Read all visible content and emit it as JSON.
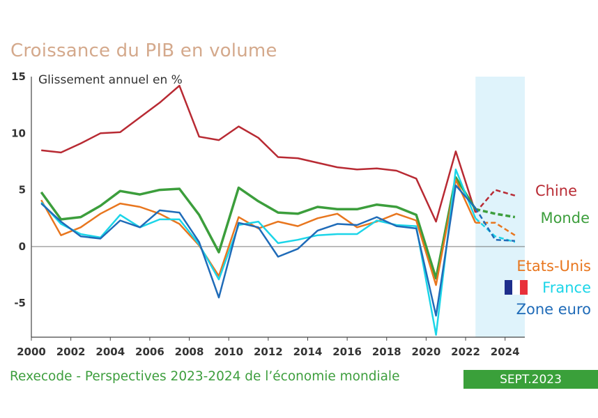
{
  "chart_data": {
    "type": "line",
    "title": "Croissance du PIB en volume",
    "ylabel": "Glissement annuel en %",
    "xlabel": "",
    "ylim": [
      -8,
      15
    ],
    "xlim": [
      2000,
      2025
    ],
    "yticks": [
      15,
      10,
      5,
      0,
      -5
    ],
    "xticks": [
      2000,
      2002,
      2004,
      2006,
      2008,
      2010,
      2012,
      2014,
      2016,
      2018,
      2020,
      2022,
      2024
    ],
    "forecast_start": 2022.5,
    "forecast_end": 2025,
    "x": [
      2000.5,
      2001.5,
      2002.5,
      2003.5,
      2004.5,
      2005.5,
      2006.5,
      2007.5,
      2008.5,
      2009.5,
      2010.5,
      2011.5,
      2012.5,
      2013.5,
      2014.5,
      2015.5,
      2016.5,
      2017.5,
      2018.5,
      2019.5,
      2020.5,
      2021.5,
      2022.5,
      2023.5,
      2024.5
    ],
    "series": [
      {
        "name": "Chine",
        "color": "#b82a33",
        "values": [
          8.5,
          8.3,
          9.1,
          10.0,
          10.1,
          11.4,
          12.7,
          14.2,
          9.7,
          9.4,
          10.6,
          9.6,
          7.9,
          7.8,
          7.4,
          7.0,
          6.8,
          6.9,
          6.7,
          6.0,
          2.2,
          8.4,
          3.0,
          5.0,
          4.5
        ],
        "forecast_from": 22,
        "width": 2.5
      },
      {
        "name": "Monde",
        "color": "#3c9e3c",
        "values": [
          4.8,
          2.4,
          2.6,
          3.6,
          4.9,
          4.6,
          5.0,
          5.1,
          2.8,
          -0.5,
          5.2,
          4.0,
          3.0,
          2.9,
          3.5,
          3.3,
          3.3,
          3.7,
          3.5,
          2.8,
          -2.8,
          6.1,
          3.3,
          2.9,
          2.6
        ],
        "forecast_from": 22,
        "width": 3.5
      },
      {
        "name": "Etats-Unis",
        "color": "#e8761e",
        "values": [
          4.1,
          1.0,
          1.7,
          2.9,
          3.8,
          3.5,
          2.9,
          2.0,
          0.1,
          -2.6,
          2.6,
          1.6,
          2.2,
          1.8,
          2.5,
          2.9,
          1.7,
          2.2,
          2.9,
          2.3,
          -3.4,
          5.9,
          2.1,
          2.1,
          1.0
        ],
        "forecast_from": 22,
        "width": 2.5
      },
      {
        "name": "France",
        "color": "#1bd5e8",
        "values": [
          3.9,
          2.0,
          1.1,
          0.8,
          2.8,
          1.7,
          2.4,
          2.4,
          0.2,
          -2.9,
          1.9,
          2.2,
          0.3,
          0.6,
          1.0,
          1.1,
          1.1,
          2.3,
          1.9,
          1.8,
          -7.8,
          6.8,
          2.5,
          0.9,
          0.4
        ],
        "forecast_from": 22,
        "width": 2.5
      },
      {
        "name": "Zone euro",
        "color": "#1f6bb8",
        "values": [
          3.8,
          2.2,
          0.9,
          0.7,
          2.3,
          1.7,
          3.2,
          3.0,
          0.4,
          -4.5,
          2.1,
          1.7,
          -0.9,
          -0.2,
          1.4,
          2.0,
          1.9,
          2.6,
          1.8,
          1.6,
          -6.1,
          5.4,
          3.4,
          0.6,
          0.5
        ],
        "forecast_from": 22,
        "width": 2.5
      }
    ],
    "legend": [
      {
        "label": "Chine",
        "color": "#b82a33"
      },
      {
        "label": "Monde",
        "color": "#3c9e3c"
      },
      {
        "label": "Etats-Unis",
        "color": "#e8761e"
      },
      {
        "label": "France",
        "color": "#1bd5e8",
        "icon": "french-flag-icon"
      },
      {
        "label": "Zone euro",
        "color": "#1f6bb8"
      }
    ]
  },
  "footer": {
    "source": "Rexecode - Perspectives 2023-2024 de l’économie mondiale",
    "date": "SEPT.2023"
  }
}
